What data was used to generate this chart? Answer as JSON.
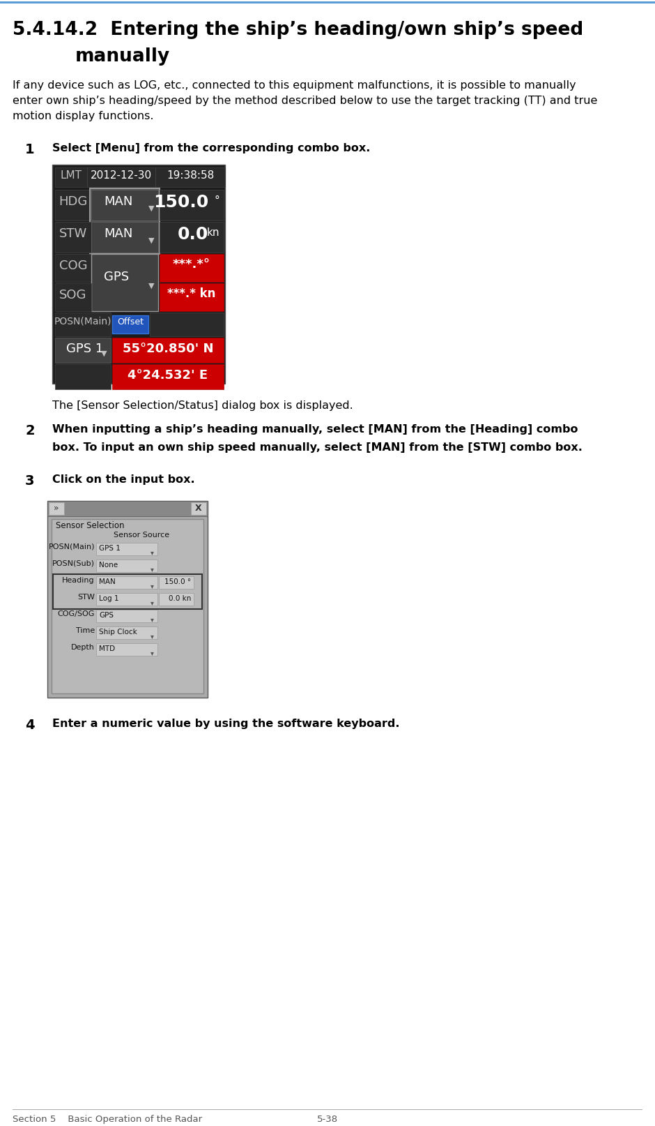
{
  "title_line1": "5.4.14.2  Entering the ship’s heading/own ship’s speed",
  "title_line2": "manually",
  "body_text_lines": [
    "If any device such as LOG, etc., connected to this equipment malfunctions, it is possible to manually",
    "enter own ship’s heading/speed by the method described below to use the target tracking (TT) and true",
    "motion display functions."
  ],
  "step1_num": "1",
  "step1_text": "Select [Menu] from the corresponding combo box.",
  "step1_note": "The [Sensor Selection/Status] dialog box is displayed.",
  "step2_num": "2",
  "step2_text_lines": [
    "When inputting a ship’s heading manually, select [MAN] from the [Heading] combo",
    "box. To input an own ship speed manually, select [MAN] from the [STW] combo box."
  ],
  "step3_num": "3",
  "step3_text": "Click on the input box.",
  "step4_num": "4",
  "step4_text": "Enter a numeric value by using the software keyboard.",
  "footer_left": "Section 5    Basic Operation of the Radar",
  "footer_right": "5-38",
  "bg_color": "#ffffff",
  "top_line_color": "#5b9bd5",
  "title_color": "#000000",
  "body_color": "#000000",
  "radar_bg": "#1c1c1c",
  "radar_dark_cell": "#2a2a2a",
  "radar_medium_cell": "#404040",
  "radar_red_cell": "#cc0000",
  "radar_label_color": "#c0c0c0",
  "radar_value_color": "#ffffff",
  "radar_blue_btn": "#2255bb",
  "dialog_bg": "#aaaaaa",
  "dialog_titlebar": "#888888",
  "dialog_inner_bg": "#aaaaaa",
  "dialog_group_bg": "#b8b8b8",
  "dialog_combo_bg": "#cccccc",
  "dialog_text": "#111111"
}
